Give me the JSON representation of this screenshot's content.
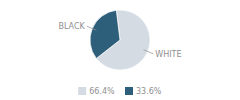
{
  "chart_data": {
    "type": "pie",
    "categories": [
      "WHITE",
      "BLACK"
    ],
    "values": [
      66.4,
      33.6
    ],
    "value_labels": [
      "66.4%",
      "33.6%"
    ],
    "colors": [
      "#d4dbe3",
      "#2e5f7a"
    ],
    "legend": "bottom"
  }
}
